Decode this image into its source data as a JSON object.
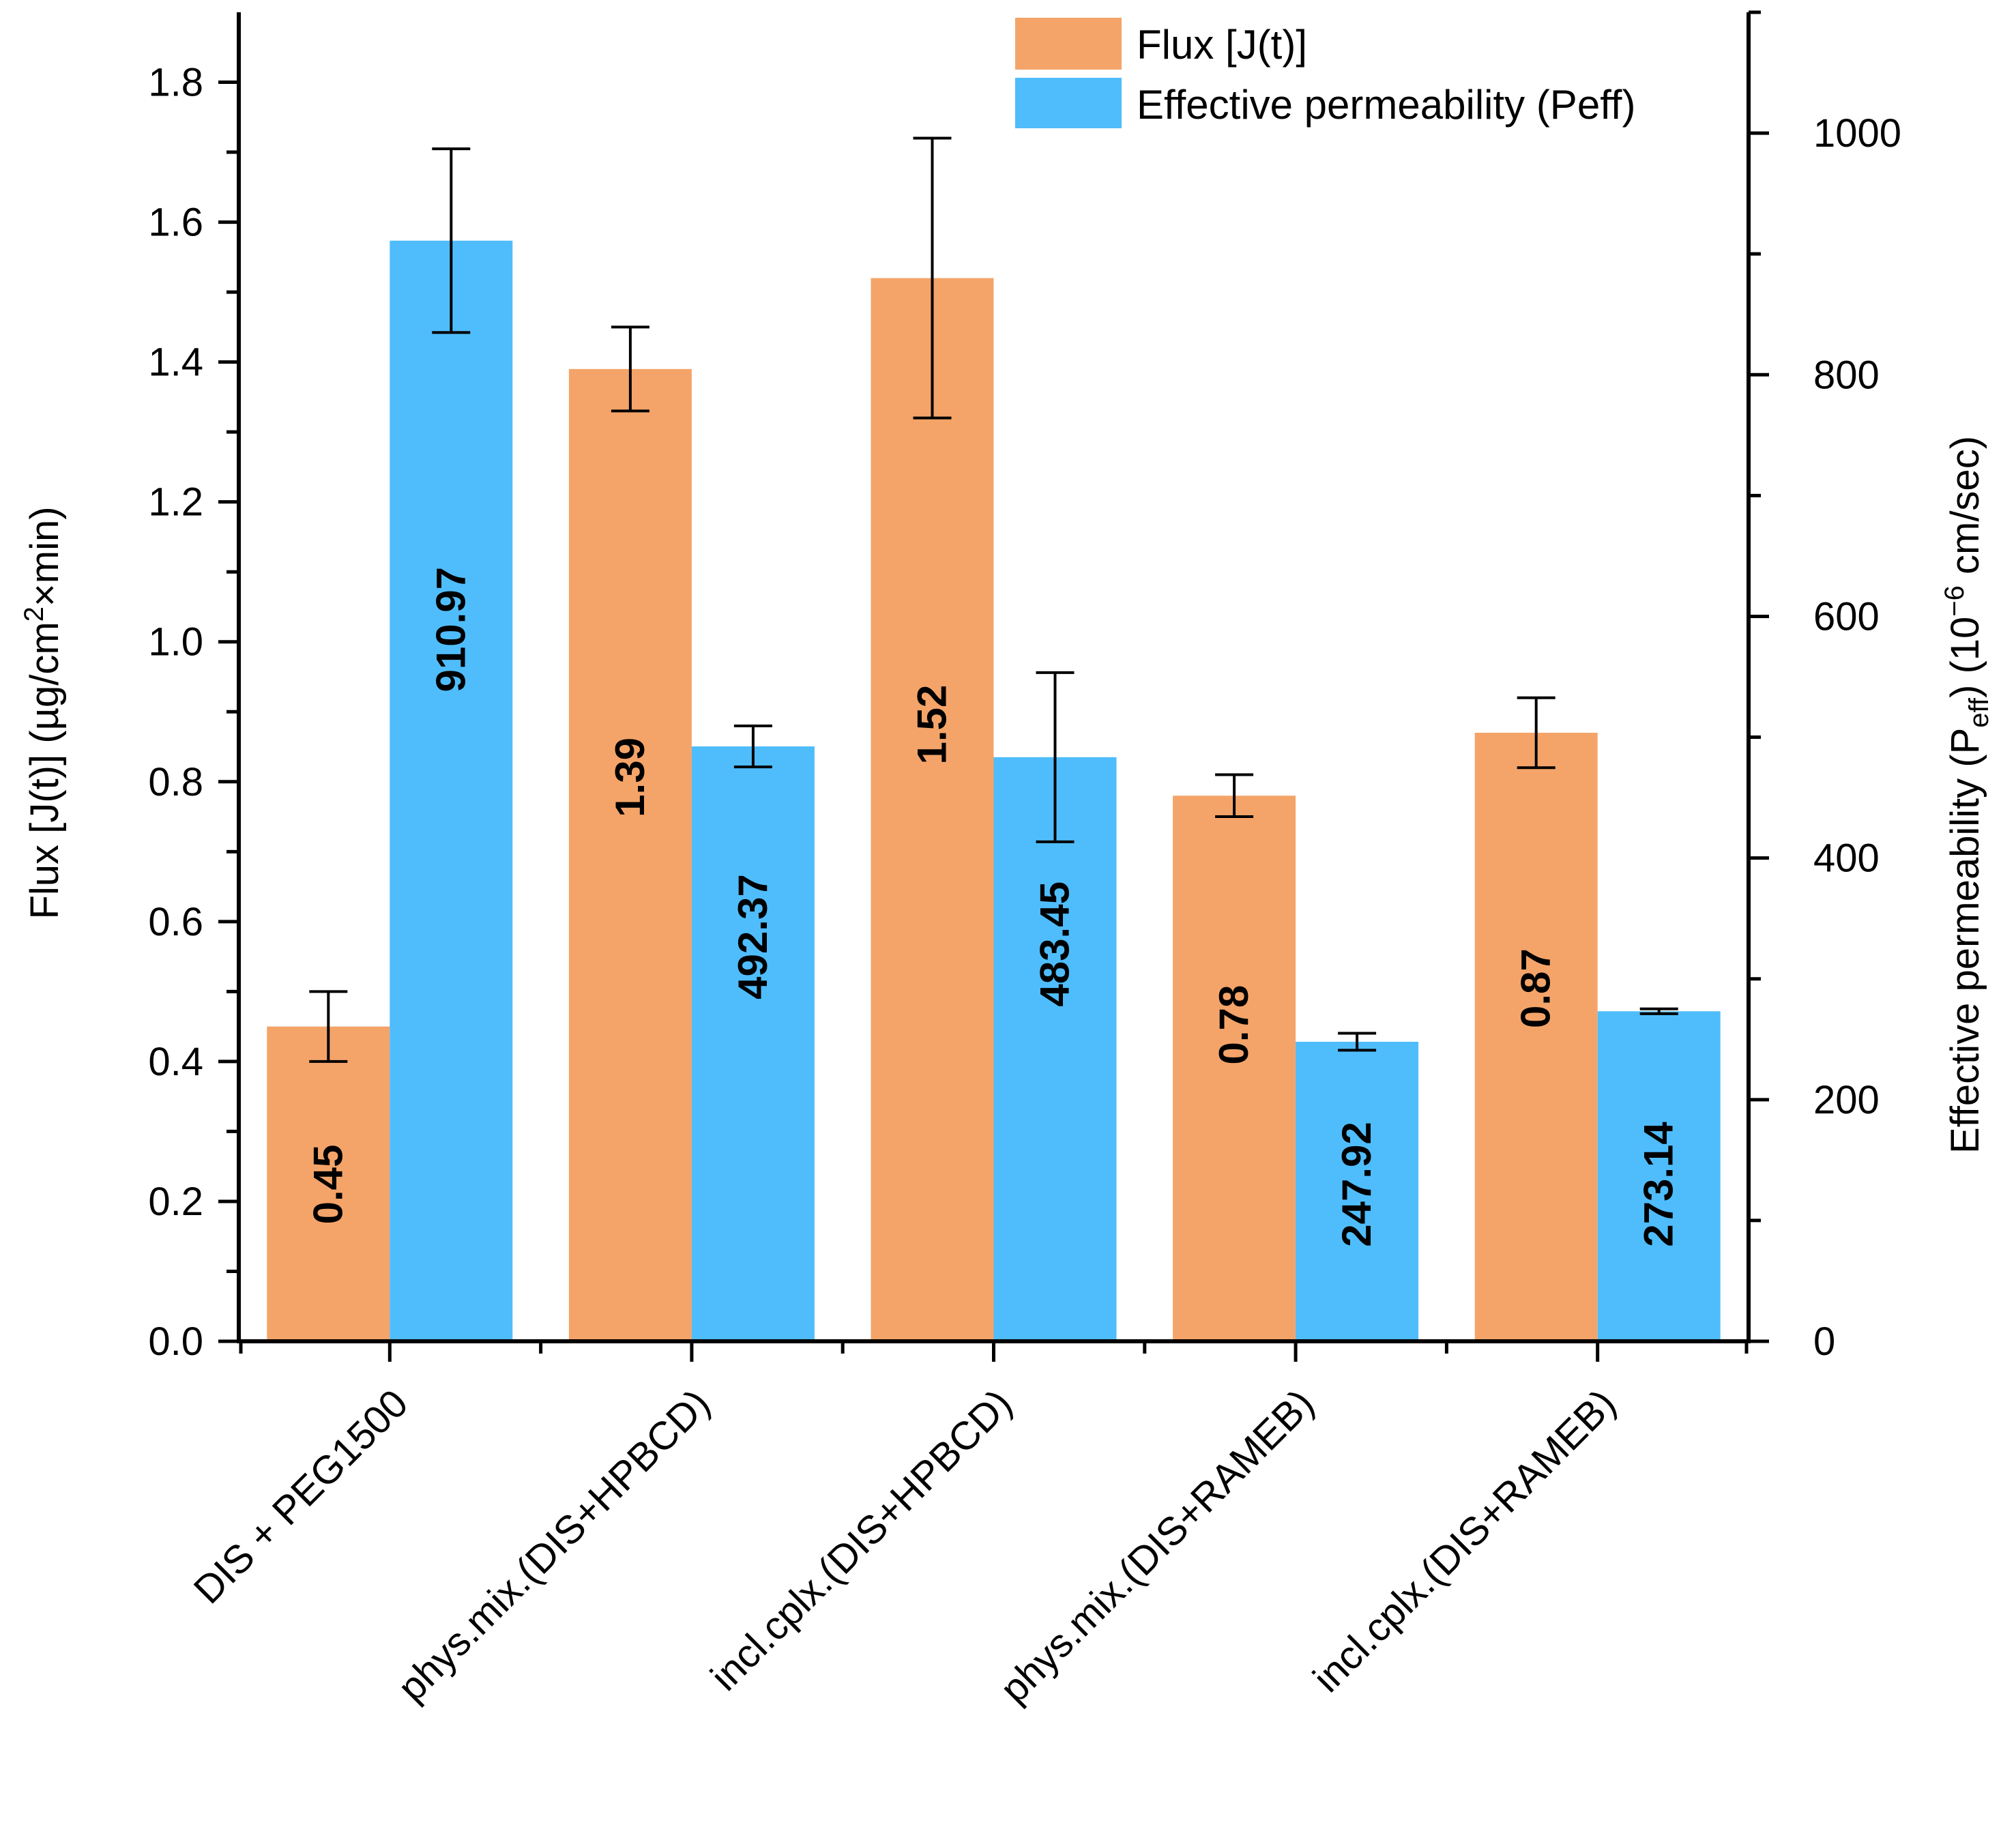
{
  "chart_data": {
    "type": "bar",
    "categories": [
      "DIS + PEG1500",
      "phys.mix.(DIS+HPBCD)",
      "incl.cplx.(DIS+HPBCD)",
      "phys.mix.(DIS+RAMEB)",
      "incl.cplx.(DIS+RAMEB)"
    ],
    "series": [
      {
        "name": "Flux [J(t)]",
        "axis": "left",
        "color": "#F4A469",
        "values": [
          0.45,
          1.39,
          1.52,
          0.78,
          0.87
        ],
        "labels": [
          "0.45",
          "1.39",
          "1.52",
          "0.78",
          "0.87"
        ],
        "error": [
          0.05,
          0.06,
          0.2,
          0.03,
          0.05
        ]
      },
      {
        "name": "Effective permeability (Peff)",
        "axis": "right",
        "color": "#4FBDFB",
        "values": [
          910.97,
          492.37,
          483.45,
          247.92,
          273.14
        ],
        "labels": [
          "910.97",
          "492.37",
          "483.45",
          "247.92",
          "273.14"
        ],
        "error": [
          76,
          17,
          70,
          7,
          2
        ]
      }
    ],
    "y_left": {
      "label": "Flux [J(t)] (µg/cm²×min)",
      "label_main": "Flux [J(t)] (µg/cm",
      "label_sup": "2",
      "label_tail": "×min)",
      "lim": [
        0,
        1.9
      ],
      "ticks": [
        "0.0",
        "0.2",
        "0.4",
        "0.6",
        "0.8",
        "1.0",
        "1.2",
        "1.4",
        "1.6",
        "1.8"
      ],
      "tick_values": [
        0,
        0.2,
        0.4,
        0.6,
        0.8,
        1.0,
        1.2,
        1.4,
        1.6,
        1.8
      ]
    },
    "y_right": {
      "label": "Effective permeability (Peff) (10⁻⁶ cm/sec)",
      "label_a": "Effective permeability (P",
      "label_sub": "eff",
      "label_b": ") (10",
      "label_sup": "−6",
      "label_c": " cm/sec)",
      "lim": [
        0,
        1100
      ],
      "ticks": [
        "0",
        "200",
        "400",
        "600",
        "800",
        "1000"
      ],
      "tick_values": [
        0,
        200,
        400,
        600,
        800,
        1000
      ]
    },
    "legend": {
      "position": "top-right"
    },
    "grid": false
  }
}
